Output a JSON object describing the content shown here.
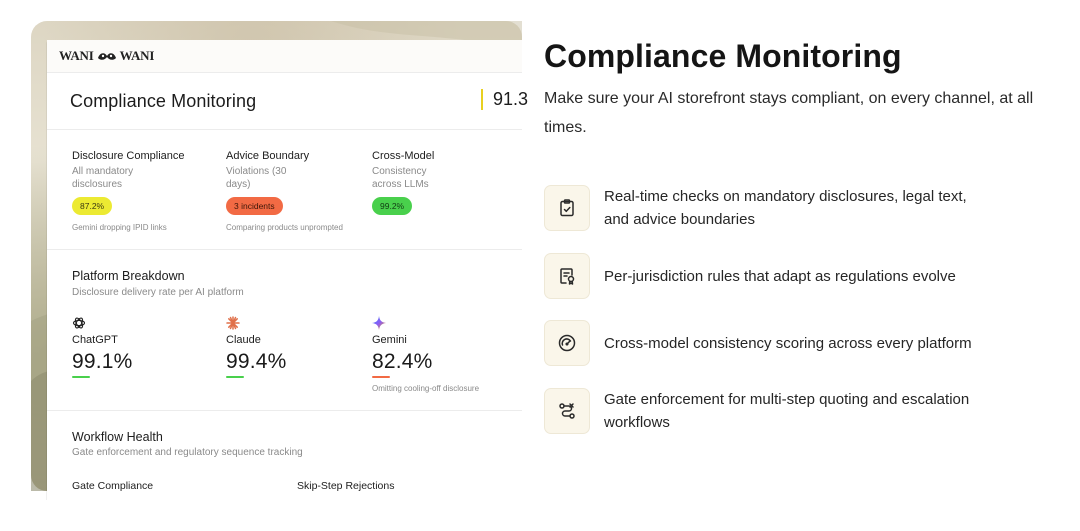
{
  "app": {
    "brand": {
      "left": "WANI",
      "right": "WANI"
    },
    "title": "Compliance Monitoring",
    "score": "91.3",
    "metrics": [
      {
        "title": "Disclosure Compliance",
        "subtitle": "All mandatory disclosures",
        "badge": "87.2%",
        "badge_color": "#ecea32",
        "note": "Gemini dropping IPID links"
      },
      {
        "title": "Advice Boundary",
        "subtitle": "Violations (30 days)",
        "badge": "3 incidents",
        "badge_color": "#f26a44",
        "note": "Comparing products unprompted"
      },
      {
        "title": "Cross-Model",
        "subtitle": "Consistency across LLMs",
        "badge": "99.2%",
        "badge_color": "#49d04c",
        "note": ""
      }
    ],
    "platform": {
      "title": "Platform Breakdown",
      "subtitle": "Disclosure delivery rate per AI platform",
      "items": [
        {
          "icon": "chatgpt-icon",
          "name": "ChatGPT",
          "value": "99.1%",
          "status_color": "#49d04c",
          "note": ""
        },
        {
          "icon": "claude-icon",
          "name": "Claude",
          "value": "99.4%",
          "status_color": "#49d04c",
          "note": ""
        },
        {
          "icon": "gemini-icon",
          "name": "Gemini",
          "value": "82.4%",
          "status_color": "#f26a44",
          "note": "Omitting cooling-off disclosure"
        }
      ]
    },
    "workflow": {
      "title": "Workflow Health",
      "subtitle": "Gate enforcement and regulatory sequence tracking",
      "col1": "Gate Compliance",
      "col2": "Skip-Step Rejections"
    }
  },
  "hero": {
    "title": "Compliance Monitoring",
    "subtitle": "Make sure your AI storefront stays compliant, on every channel, at all times."
  },
  "features": [
    {
      "icon": "clipboard-check-icon",
      "text": "Real-time checks on mandatory disclosures, legal text, and advice boundaries"
    },
    {
      "icon": "document-badge-icon",
      "text": "Per-jurisdiction rules that adapt as regulations evolve"
    },
    {
      "icon": "gauge-icon",
      "text": "Cross-model consistency scoring across every platform"
    },
    {
      "icon": "workflow-route-icon",
      "text": "Gate enforcement for multi-step quoting and escalation workflows"
    }
  ]
}
